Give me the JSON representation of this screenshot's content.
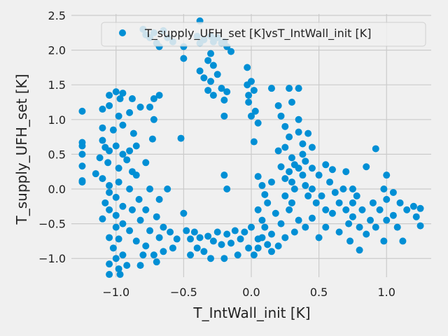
{
  "chart_data": {
    "type": "scatter",
    "title": "",
    "xlabel": "T_IntWall_init [K]",
    "ylabel": "T_supply_UFH_set [K]",
    "xlim": [
      -1.33,
      1.33
    ],
    "ylim": [
      -1.27,
      2.52
    ],
    "x_ticks": [
      -1.0,
      -0.5,
      0.0,
      0.5,
      1.0
    ],
    "x_tick_labels": [
      "−1.0",
      "−0.5",
      "0.0",
      "0.5",
      "1.0"
    ],
    "y_ticks": [
      -1.0,
      -0.5,
      0.0,
      0.5,
      1.0,
      1.5,
      2.0,
      2.5
    ],
    "y_tick_labels": [
      "−1.0",
      "−0.5",
      "0.0",
      "0.5",
      "1.0",
      "1.5",
      "2.0",
      "2.5"
    ],
    "grid": true,
    "legend_position": "top-right",
    "colors": {
      "background": "#f0f0f0",
      "grid": "#cbcbcb",
      "marker": "#008fd5",
      "text": "#222222"
    },
    "series": [
      {
        "name": "T_supply_UFH_set [K]vsT_IntWall_init [K]",
        "points": [
          [
            -1.25,
            1.12
          ],
          [
            -1.25,
            0.67
          ],
          [
            -1.25,
            0.62
          ],
          [
            -1.25,
            0.5
          ],
          [
            -1.25,
            0.33
          ],
          [
            -1.25,
            0.12
          ],
          [
            -1.25,
            0.1
          ],
          [
            -1.05,
            1.35
          ],
          [
            -1.0,
            1.4
          ],
          [
            -0.95,
            1.38
          ],
          [
            -0.97,
            1.3
          ],
          [
            -1.05,
            1.2
          ],
          [
            -1.1,
            1.15
          ],
          [
            -0.98,
            1.05
          ],
          [
            -1.1,
            0.88
          ],
          [
            -1.02,
            0.85
          ],
          [
            -0.95,
            0.92
          ],
          [
            -1.1,
            0.7
          ],
          [
            -1.08,
            0.6
          ],
          [
            -1.05,
            0.55
          ],
          [
            -1.0,
            0.62
          ],
          [
            -0.95,
            0.5
          ],
          [
            -1.12,
            0.45
          ],
          [
            -1.06,
            0.38
          ],
          [
            -0.98,
            0.3
          ],
          [
            -0.92,
            0.42
          ],
          [
            -1.15,
            0.22
          ],
          [
            -1.1,
            0.15
          ],
          [
            -1.05,
            0.05
          ],
          [
            -0.98,
            0.1
          ],
          [
            -1.05,
            -0.05
          ],
          [
            -1.0,
            -0.12
          ],
          [
            -1.08,
            -0.2
          ],
          [
            -0.95,
            -0.25
          ],
          [
            -1.05,
            -0.3
          ],
          [
            -1.0,
            -0.38
          ],
          [
            -1.1,
            -0.43
          ],
          [
            -0.95,
            -0.5
          ],
          [
            -1.0,
            -0.55
          ],
          [
            -1.05,
            -0.7
          ],
          [
            -0.98,
            -0.72
          ],
          [
            -1.02,
            -0.85
          ],
          [
            -0.95,
            -0.95
          ],
          [
            -1.0,
            -1.0
          ],
          [
            -1.05,
            -1.08
          ],
          [
            -0.98,
            -1.15
          ],
          [
            -1.05,
            -1.23
          ],
          [
            -0.97,
            -1.23
          ],
          [
            -0.92,
            -1.1
          ],
          [
            -0.9,
            -0.6
          ],
          [
            -0.88,
            -0.3
          ],
          [
            -0.9,
            0.0
          ],
          [
            -0.88,
            0.25
          ],
          [
            -0.9,
            0.55
          ],
          [
            -0.87,
            0.8
          ],
          [
            -0.9,
            1.1
          ],
          [
            -0.88,
            1.3
          ],
          [
            -0.82,
            1.18
          ],
          [
            -0.85,
            0.62
          ],
          [
            -0.85,
            0.2
          ],
          [
            -0.83,
            -0.15
          ],
          [
            -0.82,
            -0.45
          ],
          [
            -0.85,
            -0.75
          ],
          [
            -0.8,
            -0.95
          ],
          [
            -0.82,
            -1.1
          ],
          [
            -0.78,
            -0.82
          ],
          [
            -0.75,
            -0.6
          ],
          [
            -0.78,
            -0.3
          ],
          [
            -0.75,
            0.0
          ],
          [
            -0.78,
            0.38
          ],
          [
            -0.73,
            0.72
          ],
          [
            -0.75,
            1.18
          ],
          [
            -0.72,
            1.3
          ],
          [
            -0.68,
            1.35
          ],
          [
            -0.72,
            1.0
          ],
          [
            -0.68,
            -0.15
          ],
          [
            -0.7,
            -0.4
          ],
          [
            -0.68,
            -0.7
          ],
          [
            -0.72,
            -0.95
          ],
          [
            -0.7,
            -1.05
          ],
          [
            -0.65,
            -0.55
          ],
          [
            -0.65,
            -0.9
          ],
          [
            -0.62,
            0.0
          ],
          [
            -0.6,
            -0.62
          ],
          [
            -0.58,
            -0.85
          ],
          [
            -0.55,
            -0.72
          ],
          [
            -0.52,
            0.73
          ],
          [
            -0.8,
            2.3
          ],
          [
            -0.78,
            2.22
          ],
          [
            -0.75,
            2.18
          ],
          [
            -0.72,
            2.25
          ],
          [
            -0.7,
            2.1
          ],
          [
            -0.68,
            2.05
          ],
          [
            -0.65,
            2.28
          ],
          [
            -0.62,
            2.18
          ],
          [
            -0.58,
            2.12
          ],
          [
            -0.5,
            2.05
          ],
          [
            -0.5,
            1.88
          ],
          [
            -0.5,
            -0.35
          ],
          [
            -0.48,
            -0.6
          ],
          [
            -0.45,
            -0.72
          ],
          [
            -0.45,
            -0.95
          ],
          [
            -0.42,
            -0.62
          ],
          [
            -0.4,
            -0.85
          ],
          [
            -0.38,
            -0.7
          ],
          [
            -0.35,
            -0.9
          ],
          [
            -0.32,
            -0.68
          ],
          [
            -0.3,
            -1.0
          ],
          [
            -0.28,
            -0.75
          ],
          [
            -0.25,
            -0.62
          ],
          [
            -0.22,
            -0.8
          ],
          [
            -0.2,
            -1.0
          ],
          [
            -0.18,
            -0.65
          ],
          [
            -0.15,
            -0.78
          ],
          [
            -0.12,
            -0.6
          ],
          [
            -0.1,
            -0.95
          ],
          [
            -0.08,
            -0.72
          ],
          [
            -0.05,
            -0.62
          ],
          [
            -0.02,
            -0.85
          ],
          [
            0.0,
            -0.55
          ],
          [
            0.02,
            -0.95
          ],
          [
            0.05,
            -0.72
          ],
          [
            -0.38,
            2.42
          ],
          [
            -0.4,
            2.2
          ],
          [
            -0.38,
            2.1
          ],
          [
            -0.35,
            2.15
          ],
          [
            -0.3,
            2.2
          ],
          [
            -0.28,
            2.12
          ],
          [
            -0.25,
            2.18
          ],
          [
            -0.22,
            2.1
          ],
          [
            -0.2,
            2.12
          ],
          [
            -0.18,
            2.05
          ],
          [
            -0.15,
            1.98
          ],
          [
            -0.38,
            1.7
          ],
          [
            -0.35,
            1.6
          ],
          [
            -0.32,
            1.85
          ],
          [
            -0.3,
            1.95
          ],
          [
            -0.28,
            1.78
          ],
          [
            -0.3,
            1.55
          ],
          [
            -0.32,
            1.42
          ],
          [
            -0.28,
            1.35
          ],
          [
            -0.25,
            1.65
          ],
          [
            -0.22,
            1.45
          ],
          [
            -0.2,
            1.28
          ],
          [
            -0.18,
            1.4
          ],
          [
            -0.2,
            1.05
          ],
          [
            -0.2,
            0.2
          ],
          [
            -0.18,
            0.0
          ],
          [
            -0.03,
            1.5
          ],
          [
            -0.02,
            1.35
          ],
          [
            0.0,
            1.55
          ],
          [
            0.02,
            1.42
          ],
          [
            -0.02,
            1.25
          ],
          [
            0.03,
            1.12
          ],
          [
            0.0,
            1.05
          ],
          [
            0.05,
            0.95
          ],
          [
            -0.03,
            1.75
          ],
          [
            0.02,
            0.68
          ],
          [
            0.05,
            0.18
          ],
          [
            0.08,
            0.05
          ],
          [
            0.1,
            -0.08
          ],
          [
            0.05,
            -0.3
          ],
          [
            0.08,
            -0.45
          ],
          [
            0.12,
            -0.2
          ],
          [
            0.15,
            1.45
          ],
          [
            0.15,
            0.1
          ],
          [
            0.18,
            -0.35
          ],
          [
            0.2,
            0.55
          ],
          [
            0.22,
            0.32
          ],
          [
            0.25,
            0.15
          ],
          [
            0.2,
            1.2
          ],
          [
            0.22,
            1.05
          ],
          [
            0.25,
            0.9
          ],
          [
            0.28,
            1.45
          ],
          [
            0.3,
            1.25
          ],
          [
            0.28,
            0.75
          ],
          [
            0.25,
            0.6
          ],
          [
            0.3,
            0.45
          ],
          [
            0.32,
            0.35
          ],
          [
            0.28,
            0.25
          ],
          [
            0.3,
            0.1
          ],
          [
            0.32,
            0.0
          ],
          [
            0.35,
            1.45
          ],
          [
            0.35,
            1.0
          ],
          [
            0.35,
            0.82
          ],
          [
            0.38,
            0.65
          ],
          [
            0.38,
            0.5
          ],
          [
            0.4,
            0.4
          ],
          [
            0.35,
            0.3
          ],
          [
            0.38,
            0.2
          ],
          [
            0.4,
            0.05
          ],
          [
            0.42,
            -0.1
          ],
          [
            0.3,
            -0.2
          ],
          [
            0.25,
            -0.1
          ],
          [
            0.28,
            -0.3
          ],
          [
            0.22,
            -0.5
          ],
          [
            0.45,
            0.3
          ],
          [
            0.45,
            0.6
          ],
          [
            0.42,
            0.8
          ],
          [
            0.45,
            0.0
          ],
          [
            0.48,
            -0.2
          ],
          [
            0.5,
            0.2
          ],
          [
            0.52,
            -0.1
          ],
          [
            0.55,
            0.35
          ],
          [
            0.55,
            -0.3
          ],
          [
            0.58,
            0.1
          ],
          [
            0.6,
            0.28
          ],
          [
            0.62,
            -0.05
          ],
          [
            0.65,
            -0.2
          ],
          [
            0.68,
            0.0
          ],
          [
            0.7,
            -0.3
          ],
          [
            0.72,
            -0.5
          ],
          [
            0.75,
            -0.2
          ],
          [
            0.75,
            -0.4
          ],
          [
            0.78,
            -0.1
          ],
          [
            0.8,
            -0.55
          ],
          [
            0.82,
            -0.3
          ],
          [
            0.85,
            -0.65
          ],
          [
            0.88,
            -0.45
          ],
          [
            0.9,
            -0.2
          ],
          [
            0.92,
            0.58
          ],
          [
            0.92,
            -0.55
          ],
          [
            0.95,
            -0.3
          ],
          [
            1.0,
            -0.15
          ],
          [
            0.98,
            0.0
          ],
          [
            1.0,
            0.2
          ],
          [
            1.0,
            -0.45
          ],
          [
            0.98,
            -0.75
          ],
          [
            1.05,
            -0.05
          ],
          [
            1.05,
            -0.38
          ],
          [
            1.08,
            -0.55
          ],
          [
            1.1,
            -0.2
          ],
          [
            1.12,
            -0.75
          ],
          [
            1.15,
            -0.3
          ],
          [
            1.2,
            -0.25
          ],
          [
            1.22,
            -0.4
          ],
          [
            1.25,
            -0.28
          ],
          [
            1.25,
            -0.53
          ],
          [
            0.85,
            0.32
          ],
          [
            0.75,
            0.0
          ],
          [
            0.7,
            0.25
          ],
          [
            0.6,
            -0.35
          ],
          [
            0.55,
            -0.55
          ],
          [
            0.5,
            -0.7
          ],
          [
            0.45,
            -0.42
          ],
          [
            0.4,
            -0.55
          ],
          [
            0.35,
            -0.45
          ],
          [
            0.32,
            -0.62
          ],
          [
            0.25,
            -0.7
          ],
          [
            0.2,
            -0.82
          ],
          [
            0.15,
            -0.65
          ],
          [
            0.12,
            -0.8
          ],
          [
            0.1,
            -0.55
          ],
          [
            0.08,
            -0.7
          ],
          [
            0.15,
            -0.9
          ],
          [
            0.05,
            -0.85
          ],
          [
            0.8,
            -0.88
          ],
          [
            0.73,
            -0.75
          ],
          [
            0.65,
            -0.62
          ]
        ]
      }
    ]
  }
}
